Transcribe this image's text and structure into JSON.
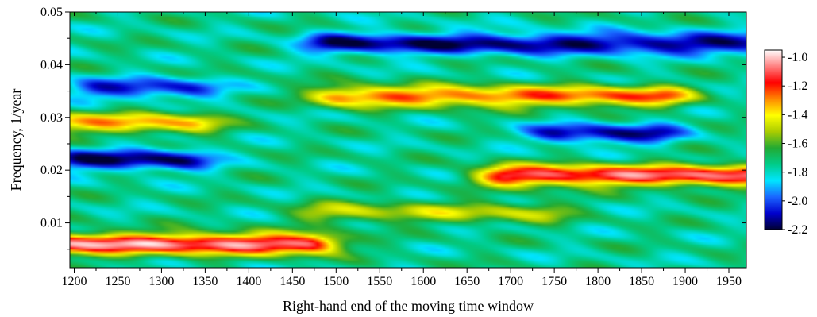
{
  "chart_data": {
    "type": "heatmap",
    "title": "",
    "xlabel": "Right-hand end of the moving time window",
    "ylabel": "Frequency, 1/year",
    "xlim": [
      1195,
      1970
    ],
    "ylim": [
      0.0015,
      0.05
    ],
    "x_ticks": [
      "1200",
      "1250",
      "1300",
      "1350",
      "1400",
      "1450",
      "1500",
      "1550",
      "1600",
      "1650",
      "1700",
      "1750",
      "1800",
      "1850",
      "1900",
      "1950"
    ],
    "y_ticks": [
      "0.01",
      "0.02",
      "0.03",
      "0.04",
      "0.05"
    ],
    "colorbar": {
      "range": [
        -2.2,
        -0.95
      ],
      "ticks": [
        "-1.0",
        "-1.2",
        "-1.4",
        "-1.6",
        "-1.8",
        "-2.0",
        "-2.2"
      ],
      "colormap": [
        "#000033",
        "#0000cc",
        "#1a66ff",
        "#00e5ff",
        "#00cc88",
        "#22aa33",
        "#aacc00",
        "#ffff00",
        "#ff8800",
        "#ff0000",
        "#ff8080",
        "#ffffff"
      ]
    },
    "background_level": -1.75,
    "features": [
      {
        "name": "low-frequency ridge",
        "x": [
          1195,
          1465
        ],
        "y": 0.006,
        "level": -1.05
      },
      {
        "name": "ridge 0.029",
        "x": [
          1195,
          1330
        ],
        "y": 0.029,
        "level": -1.35
      },
      {
        "name": "ridge 0.034",
        "x": [
          1510,
          1870
        ],
        "y": 0.034,
        "level": -1.25
      },
      {
        "name": "ridge 0.019",
        "x": [
          1700,
          1970
        ],
        "y": 0.019,
        "level": -1.1
      },
      {
        "name": "ridge 0.012",
        "x": [
          1490,
          1730
        ],
        "y": 0.012,
        "level": -1.5
      },
      {
        "name": "low 0.022",
        "x": [
          1210,
          1320
        ],
        "y": 0.022,
        "level": -2.15
      },
      {
        "name": "low 0.035",
        "x": [
          1230,
          1330
        ],
        "y": 0.0355,
        "level": -2.05
      },
      {
        "name": "low 0.044",
        "x": [
          1500,
          1970
        ],
        "y": 0.044,
        "level": -2.15
      },
      {
        "name": "low 0.027",
        "x": [
          1760,
          1860
        ],
        "y": 0.027,
        "level": -2.1
      }
    ]
  }
}
